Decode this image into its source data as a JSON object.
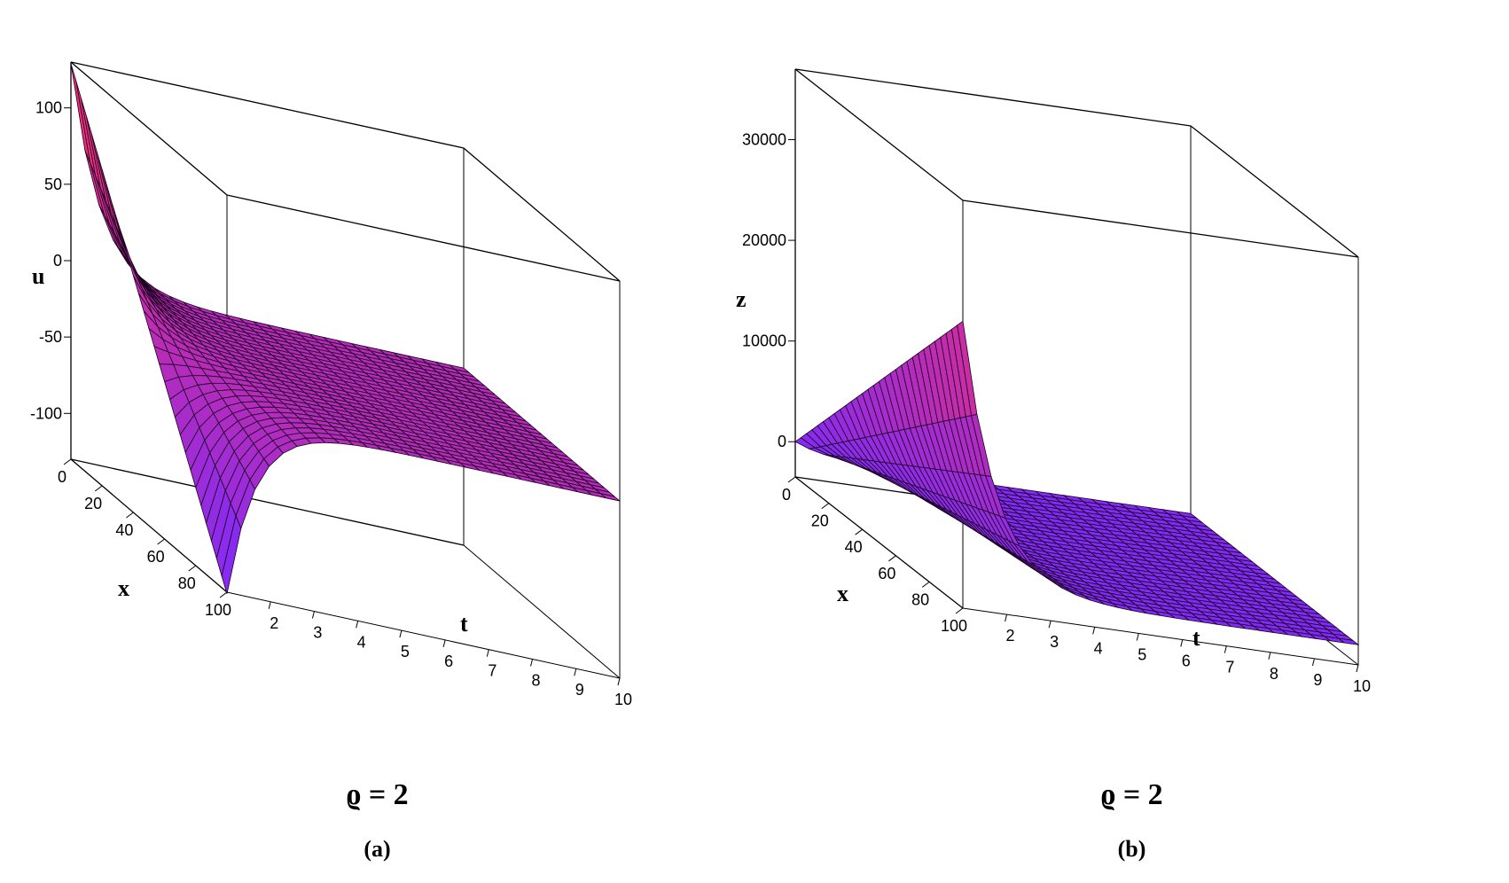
{
  "chart_data": [
    {
      "type": "surface",
      "panel_label": "(a)",
      "parameter_label": "ϱ = 2",
      "xlabel": "t",
      "ylabel": "x",
      "zlabel": "u",
      "t_ticks": [
        2,
        3,
        4,
        5,
        6,
        7,
        8,
        9,
        10
      ],
      "x_ticks": [
        0,
        20,
        40,
        60,
        80,
        100
      ],
      "z_ticks": [
        100,
        50,
        0,
        -50,
        -100
      ],
      "t_range": [
        1,
        10
      ],
      "x_range": [
        0,
        100
      ],
      "z_range": [
        -130,
        130
      ],
      "surface_shape": "plateau near u = -14 for t > 2; spikes up to about 130 at t = 1, x = 0 and drops to about -130 at t = 1, x = 100",
      "color_low": "#7b2bff",
      "color_high": "#ff2e63"
    },
    {
      "type": "surface",
      "panel_label": "(b)",
      "parameter_label": "ϱ = 2",
      "xlabel": "t",
      "ylabel": "x",
      "zlabel": "z",
      "t_ticks": [
        2,
        3,
        4,
        5,
        6,
        7,
        8,
        9,
        10
      ],
      "x_ticks": [
        0,
        20,
        40,
        60,
        80,
        100
      ],
      "z_ticks": [
        30000,
        20000,
        10000,
        0
      ],
      "t_range": [
        1,
        10
      ],
      "x_range": [
        0,
        100
      ],
      "z_range": [
        -3500,
        37000
      ],
      "surface_shape": "flat near z = 0 for t > 2; rises linearly with x at t = 1 up to about 24000 at x = 100",
      "color_low": "#7b2bff",
      "color_high": "#ff2e63"
    }
  ]
}
